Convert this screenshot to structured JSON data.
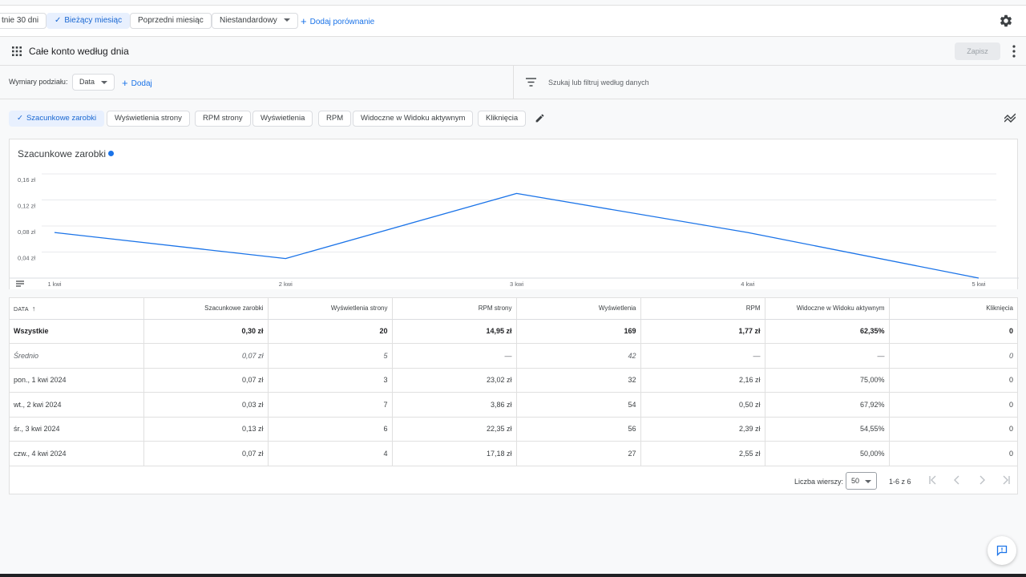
{
  "date_bar": {
    "chips": [
      {
        "label": "tnie 30 dni"
      },
      {
        "label": "Bieżący miesiąc",
        "selected": true
      },
      {
        "label": "Poprzedni miesiąc"
      },
      {
        "label": "Niestandardowy"
      }
    ],
    "add_comparison": "Dodaj porównanie",
    "settings_icon": "gear-icon"
  },
  "title_bar": {
    "title": "Całe konto według dnia",
    "save_label": "Zapisz",
    "apps_icon": "apps-grid-icon",
    "more_icon": "more-vert-icon"
  },
  "dimensions": {
    "label": "Wymiary podziału:",
    "selected": "Data",
    "add_label": "Dodaj",
    "filter_placeholder": "Szukaj lub filtruj według danych"
  },
  "metrics": [
    {
      "label": "Szacunkowe zarobki",
      "selected": true
    },
    {
      "label": "Wyświetlenia strony"
    },
    {
      "label": "RPM strony"
    },
    {
      "label": "Wyświetlenia"
    },
    {
      "label": "RPM"
    },
    {
      "label": "Widoczne w Widoku aktywnym"
    },
    {
      "label": "Kliknięcia"
    }
  ],
  "chart_title": "Szacunkowe zarobki",
  "chart_data": {
    "type": "line",
    "title": "Szacunkowe zarobki",
    "x": [
      "1 kwi",
      "2 kwi",
      "3 kwi",
      "4 kwi",
      "5 kwi"
    ],
    "series": [
      {
        "name": "Szacunkowe zarobki",
        "values": [
          0.07,
          0.03,
          0.13,
          0.07,
          0.0
        ],
        "color": "#1a73e8"
      }
    ],
    "yticks": [
      "0,04 zł",
      "0,08 zł",
      "0,12 zł",
      "0,16 zł"
    ],
    "ytick_values": [
      0.04,
      0.08,
      0.12,
      0.16
    ],
    "ylim": [
      0,
      0.16
    ],
    "grid": true
  },
  "table": {
    "headers": [
      "DATA",
      "Szacunkowe zarobki",
      "Wyświetlenia strony",
      "RPM strony",
      "Wyświetlenia",
      "RPM",
      "Widoczne w Widoku aktywnym",
      "Kliknięcia"
    ],
    "rows": [
      [
        "Wszystkie",
        "0,30 zł",
        "20",
        "14,95 zł",
        "169",
        "1,77 zł",
        "62,35%",
        "0"
      ],
      [
        "Średnio",
        "0,07 zł",
        "5",
        "—",
        "42",
        "—",
        "—",
        "0"
      ],
      [
        "pon., 1 kwi 2024",
        "0,07 zł",
        "3",
        "23,02 zł",
        "32",
        "2,16 zł",
        "75,00%",
        "0"
      ],
      [
        "wt., 2 kwi 2024",
        "0,03 zł",
        "7",
        "3,86 zł",
        "54",
        "0,50 zł",
        "67,92%",
        "0"
      ],
      [
        "śr., 3 kwi 2024",
        "0,13 zł",
        "6",
        "22,35 zł",
        "56",
        "2,39 zł",
        "54,55%",
        "0"
      ],
      [
        "czw., 4 kwi 2024",
        "0,07 zł",
        "4",
        "17,18 zł",
        "27",
        "2,55 zł",
        "50,00%",
        "0"
      ]
    ]
  },
  "pager": {
    "rows_label": "Liczba wierszy:",
    "rows_value": "50",
    "range": "1-6 z 6"
  }
}
